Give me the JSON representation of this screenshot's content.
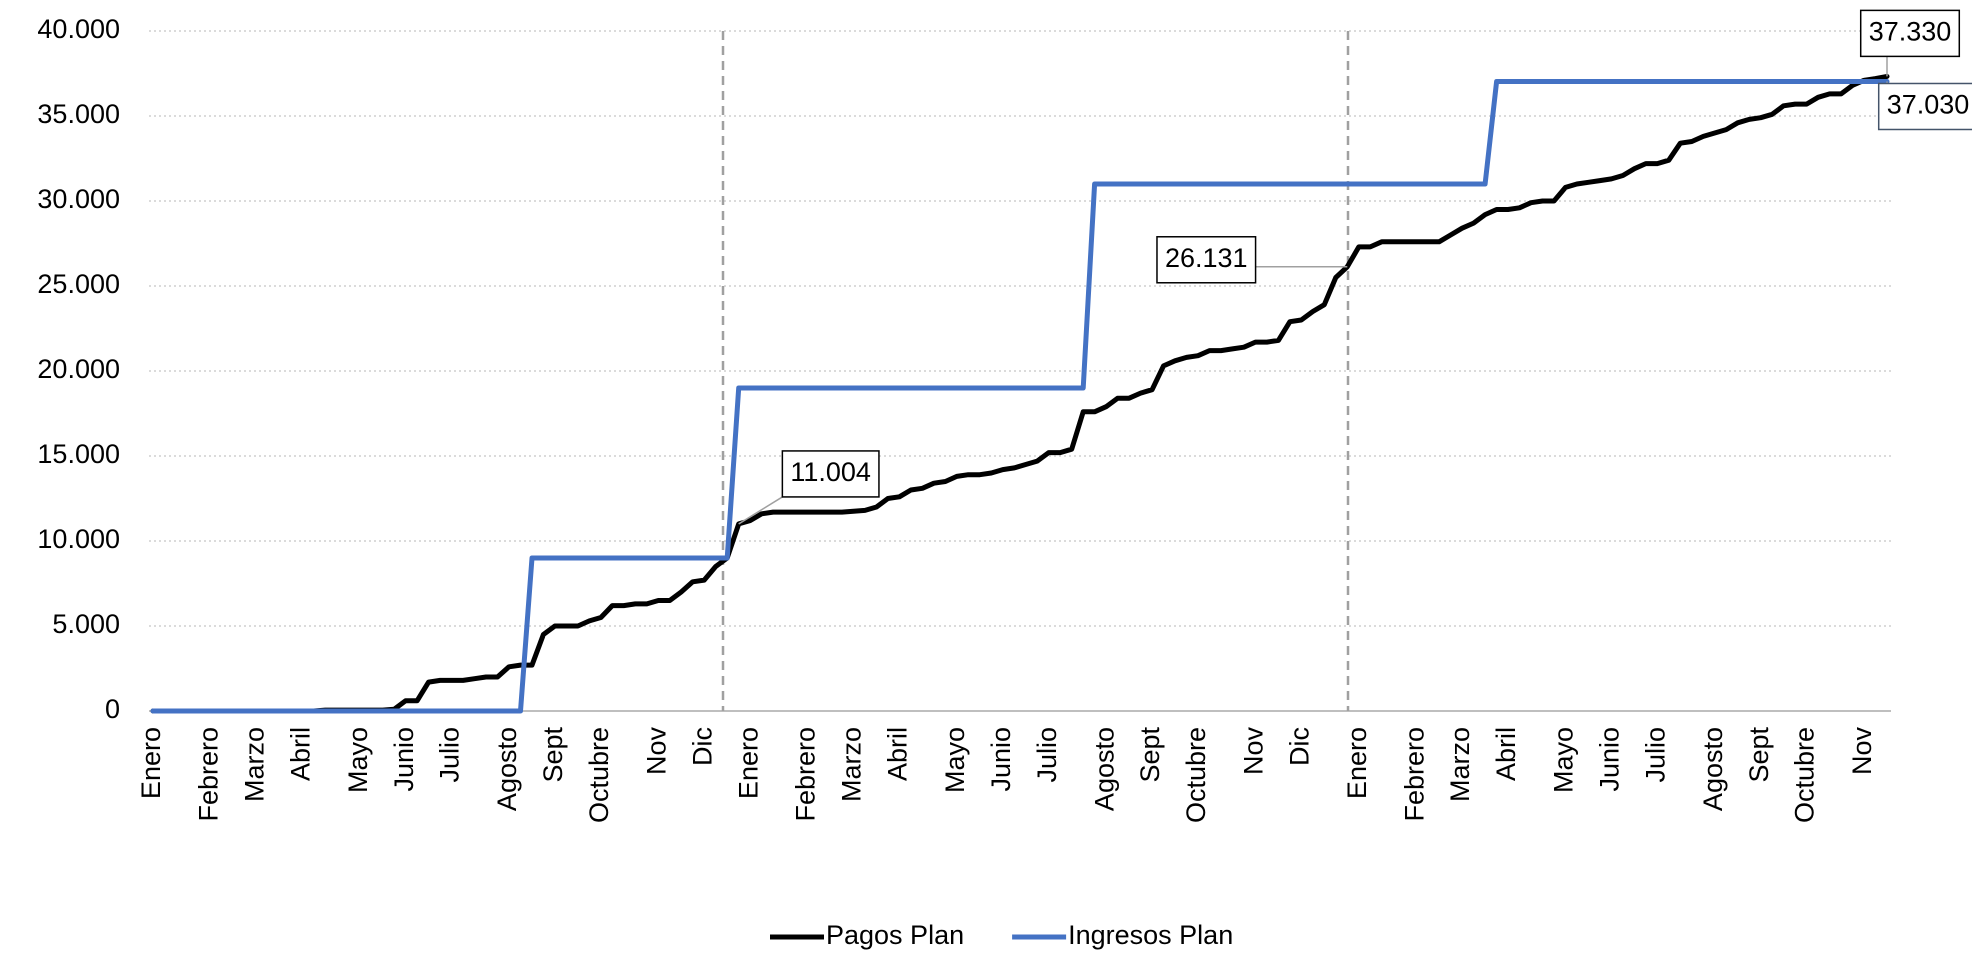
{
  "chart_data": {
    "type": "line",
    "categories": [
      "Enero",
      null,
      null,
      null,
      null,
      "Febrero",
      null,
      null,
      null,
      "Marzo",
      null,
      null,
      null,
      "Abril",
      null,
      null,
      null,
      null,
      "Mayo",
      null,
      null,
      null,
      "Junio",
      null,
      null,
      null,
      "Julio",
      null,
      null,
      null,
      null,
      "Agosto",
      null,
      null,
      null,
      "Sept",
      null,
      null,
      null,
      "Octubre",
      null,
      null,
      null,
      null,
      "Nov",
      null,
      null,
      null,
      "Dic",
      null,
      null,
      null,
      "Enero",
      null,
      null,
      null,
      null,
      "Febrero",
      null,
      null,
      null,
      "Marzo",
      null,
      null,
      null,
      "Abril",
      null,
      null,
      null,
      null,
      "Mayo",
      null,
      null,
      null,
      "Junio",
      null,
      null,
      null,
      "Julio",
      null,
      null,
      null,
      null,
      "Agosto",
      null,
      null,
      null,
      "Sept",
      null,
      null,
      null,
      "Octubre",
      null,
      null,
      null,
      null,
      "Nov",
      null,
      null,
      null,
      "Dic",
      null,
      null,
      null,
      null,
      "Enero",
      null,
      null,
      null,
      null,
      "Febrero",
      null,
      null,
      null,
      "Marzo",
      null,
      null,
      null,
      "Abril",
      null,
      null,
      null,
      null,
      "Mayo",
      null,
      null,
      null,
      "Junio",
      null,
      null,
      null,
      "Julio",
      null,
      null,
      null,
      null,
      "Agosto",
      null,
      null,
      null,
      "Sept",
      null,
      null,
      null,
      "Octubre",
      null,
      null,
      null,
      null,
      "Nov",
      null,
      null
    ],
    "series": [
      {
        "name": "Pagos Plan",
        "color": "#000000",
        "values": [
          0,
          0,
          0,
          0,
          0,
          0,
          0,
          0,
          0,
          0,
          0,
          0,
          0,
          0,
          0,
          50,
          50,
          50,
          50,
          50,
          50,
          100,
          600,
          600,
          1700,
          1800,
          1800,
          1800,
          1900,
          2000,
          2000,
          2600,
          2700,
          2700,
          4500,
          5000,
          5000,
          5000,
          5300,
          5500,
          6200,
          6200,
          6300,
          6300,
          6500,
          6500,
          7000,
          7600,
          7700,
          8500,
          9000,
          11004,
          11200,
          11600,
          11700,
          11700,
          11700,
          11700,
          11700,
          11700,
          11700,
          11750,
          11800,
          12000,
          12500,
          12600,
          13000,
          13100,
          13400,
          13500,
          13800,
          13900,
          13900,
          14000,
          14200,
          14300,
          14500,
          14700,
          15200,
          15200,
          15400,
          17600,
          17600,
          17900,
          18400,
          18400,
          18700,
          18900,
          20300,
          20600,
          20800,
          20900,
          21200,
          21200,
          21300,
          21400,
          21700,
          21700,
          21800,
          22900,
          23000,
          23500,
          23900,
          25500,
          26131,
          27300,
          27300,
          27600,
          27600,
          27600,
          27600,
          27600,
          27600,
          28000,
          28400,
          28700,
          29200,
          29500,
          29500,
          29600,
          29900,
          30000,
          30000,
          30800,
          31000,
          31100,
          31200,
          31300,
          31500,
          31900,
          32200,
          32200,
          32400,
          33400,
          33500,
          33800,
          34000,
          34200,
          34600,
          34800,
          34900,
          35100,
          35600,
          35700,
          35700,
          36100,
          36300,
          36300,
          36800,
          37100,
          37200,
          37330
        ],
        "value_labels": [
          null,
          null,
          null,
          null,
          null,
          null,
          null,
          null,
          null,
          null,
          null,
          null,
          null,
          null,
          null,
          null,
          null,
          null,
          null,
          null,
          null,
          null,
          null,
          null,
          null,
          null,
          null,
          null,
          null,
          null,
          null,
          null,
          null,
          null,
          null,
          null,
          null,
          null,
          null,
          null,
          null,
          null,
          null,
          null,
          null,
          null,
          null,
          null,
          null,
          null,
          null,
          "11.004",
          null,
          null,
          null,
          null,
          null,
          null,
          null,
          null,
          null,
          null,
          null,
          null,
          null,
          null,
          null,
          null,
          null,
          null,
          null,
          null,
          null,
          null,
          null,
          null,
          null,
          null,
          null,
          null,
          null,
          null,
          null,
          null,
          null,
          null,
          null,
          null,
          null,
          null,
          null,
          null,
          null,
          null,
          null,
          null,
          null,
          null,
          null,
          null,
          null,
          null,
          null,
          null,
          "26.131",
          null,
          null,
          null,
          null,
          null,
          null,
          null,
          null,
          null,
          null,
          null,
          null,
          null,
          null,
          null,
          null,
          null,
          null,
          null,
          null,
          null,
          null,
          null,
          null,
          null,
          null,
          null,
          null,
          null,
          null,
          null,
          null,
          null,
          null,
          null,
          null,
          null,
          null,
          null,
          null,
          null,
          null,
          null,
          null,
          null,
          null,
          "37.330"
        ]
      },
      {
        "name": "Ingresos Plan",
        "color": "#4472c4",
        "values": [
          0,
          0,
          0,
          0,
          0,
          0,
          0,
          0,
          0,
          0,
          0,
          0,
          0,
          0,
          0,
          0,
          0,
          0,
          0,
          0,
          0,
          0,
          0,
          0,
          0,
          0,
          0,
          0,
          0,
          0,
          0,
          0,
          0,
          9000,
          9000,
          9000,
          9000,
          9000,
          9000,
          9000,
          9000,
          9000,
          9000,
          9000,
          9000,
          9000,
          9000,
          9000,
          9000,
          9000,
          9000,
          19000,
          19000,
          19000,
          19000,
          19000,
          19000,
          19000,
          19000,
          19000,
          19000,
          19000,
          19000,
          19000,
          19000,
          19000,
          19000,
          19000,
          19000,
          19000,
          19000,
          19000,
          19000,
          19000,
          19000,
          19000,
          19000,
          19000,
          19000,
          19000,
          19000,
          19000,
          31000,
          31000,
          31000,
          31000,
          31000,
          31000,
          31000,
          31000,
          31000,
          31000,
          31000,
          31000,
          31000,
          31000,
          31000,
          31000,
          31000,
          31000,
          31000,
          31000,
          31000,
          31000,
          31000,
          31000,
          31000,
          31000,
          31000,
          31000,
          31000,
          31000,
          31000,
          31000,
          31000,
          31000,
          31000,
          37030,
          37030,
          37030,
          37030,
          37030,
          37030,
          37030,
          37030,
          37030,
          37030,
          37030,
          37030,
          37030,
          37030,
          37030,
          37030,
          37030,
          37030,
          37030,
          37030,
          37030,
          37030,
          37030,
          37030,
          37030,
          37030,
          37030,
          37030,
          37030,
          37030,
          37030,
          37030,
          37030,
          37030,
          37030
        ],
        "value_labels": [
          null,
          null,
          null,
          null,
          null,
          null,
          null,
          null,
          null,
          null,
          null,
          null,
          null,
          null,
          null,
          null,
          null,
          null,
          null,
          null,
          null,
          null,
          null,
          null,
          null,
          null,
          null,
          null,
          null,
          null,
          null,
          null,
          null,
          null,
          null,
          null,
          null,
          null,
          null,
          null,
          null,
          null,
          null,
          null,
          null,
          null,
          null,
          null,
          null,
          null,
          null,
          null,
          null,
          null,
          null,
          null,
          null,
          null,
          null,
          null,
          null,
          null,
          null,
          null,
          null,
          null,
          null,
          null,
          null,
          null,
          null,
          null,
          null,
          null,
          null,
          null,
          null,
          null,
          null,
          null,
          null,
          null,
          null,
          null,
          null,
          null,
          null,
          null,
          null,
          null,
          null,
          null,
          null,
          null,
          null,
          null,
          null,
          null,
          null,
          null,
          null,
          null,
          null,
          null,
          null,
          null,
          null,
          null,
          null,
          null,
          null,
          null,
          null,
          null,
          null,
          null,
          null,
          null,
          null,
          null,
          null,
          null,
          null,
          null,
          null,
          null,
          null,
          null,
          null,
          null,
          null,
          null,
          null,
          null,
          null,
          null,
          null,
          null,
          null,
          null,
          null,
          null,
          null,
          null,
          null,
          null,
          null,
          null,
          null,
          null,
          null,
          "37.030"
        ]
      }
    ],
    "ylim": [
      0,
      40000
    ],
    "yticks": [
      0,
      {
        "value": 5000,
        "label": "5.000"
      },
      {
        "value": 10000,
        "label": "10.000"
      },
      {
        "value": 15000,
        "label": "15.000"
      },
      {
        "value": 20000,
        "label": "20.000"
      },
      {
        "value": 25000,
        "label": "25.000"
      },
      {
        "value": 30000,
        "label": "30.000"
      },
      {
        "value": 35000,
        "label": "35.000"
      },
      {
        "value": 40000,
        "label": "40.000"
      }
    ],
    "grid": true,
    "legend": "bottom"
  }
}
